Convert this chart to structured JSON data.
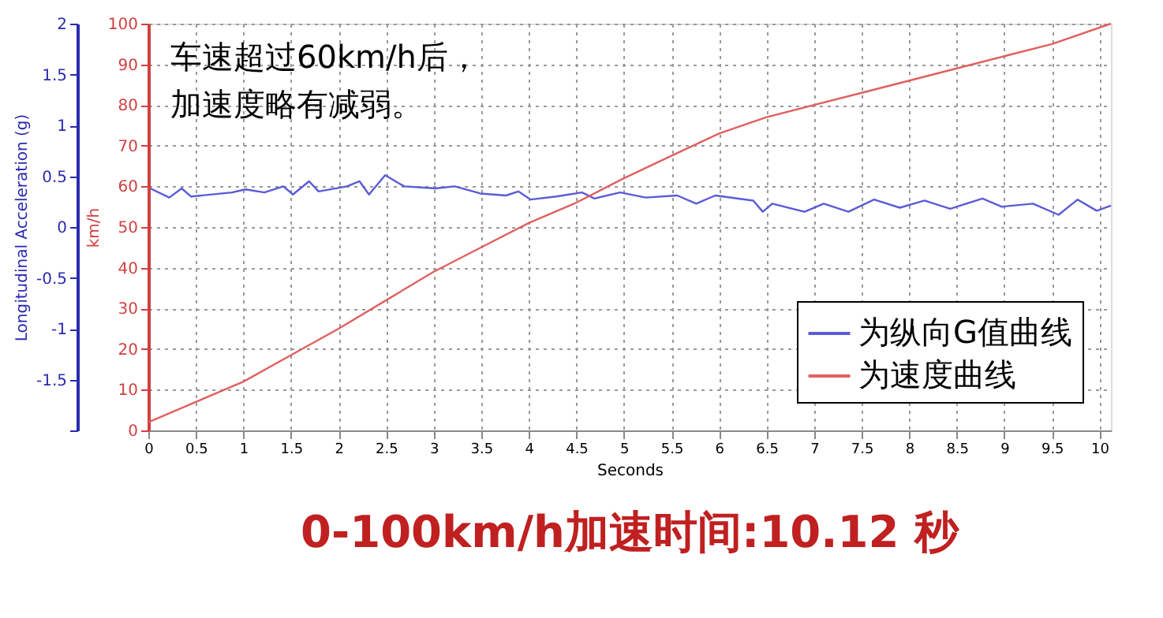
{
  "chart_data": {
    "type": "line",
    "title": "0-100km/h加速时间:10.12 秒",
    "xlabel": "Seconds",
    "ylabel": "km/h",
    "y2label": "Longitudinal Acceleration (g)",
    "annotations": [
      "车速超过60km/h后，",
      "加速度略有减弱。"
    ],
    "xlim": [
      0,
      10.12
    ],
    "xticks": [
      0,
      0.5,
      1,
      1.5,
      2,
      2.5,
      3,
      3.5,
      4,
      4.5,
      5,
      5.5,
      6,
      6.5,
      7,
      7.5,
      8,
      8.5,
      9,
      9.5,
      10
    ],
    "ylim": [
      0,
      100
    ],
    "yticks": [
      0,
      10,
      20,
      30,
      40,
      50,
      60,
      70,
      80,
      90,
      100
    ],
    "y2lim": [
      -2,
      2
    ],
    "y2ticks": [
      {
        "value": -2,
        "label": null
      },
      -1.5,
      -1,
      -0.5,
      0,
      0.5,
      1,
      1.5,
      2
    ],
    "grid": true,
    "legend": "bottom right",
    "series": [
      {
        "name": "为纵向G值曲线",
        "color": "#5b5bd6",
        "axis": "y2",
        "x": [
          0.02,
          0.22,
          0.35,
          0.45,
          0.88,
          1.02,
          1.22,
          1.42,
          1.52,
          1.69,
          1.79,
          2.09,
          2.22,
          2.32,
          2.49,
          2.69,
          3.02,
          3.22,
          3.49,
          3.76,
          3.89,
          4.02,
          4.29,
          4.56,
          4.69,
          4.96,
          5.23,
          5.56,
          5.76,
          5.96,
          6.36,
          6.46,
          6.56,
          6.9,
          7.1,
          7.36,
          7.63,
          7.9,
          8.16,
          8.43,
          8.77,
          8.97,
          9.3,
          9.57,
          9.77,
          9.97,
          10.12
        ],
        "values": [
          0.38,
          0.29,
          0.38,
          0.3,
          0.34,
          0.37,
          0.34,
          0.4,
          0.32,
          0.45,
          0.35,
          0.4,
          0.45,
          0.32,
          0.51,
          0.4,
          0.38,
          0.4,
          0.33,
          0.31,
          0.35,
          0.27,
          0.3,
          0.34,
          0.28,
          0.34,
          0.29,
          0.31,
          0.23,
          0.31,
          0.26,
          0.15,
          0.23,
          0.15,
          0.23,
          0.15,
          0.27,
          0.19,
          0.26,
          0.18,
          0.28,
          0.2,
          0.23,
          0.12,
          0.27,
          0.16,
          0.21
        ]
      },
      {
        "name": "为速度曲线",
        "color": "#e06060",
        "axis": "y",
        "x": [
          0,
          0.5,
          1,
          1.5,
          2,
          2.5,
          3,
          3.5,
          4,
          4.5,
          5,
          5.5,
          6,
          6.5,
          7,
          7.5,
          8,
          8.5,
          9,
          9.5,
          10.12
        ],
        "values": [
          2,
          7,
          12,
          18.5,
          25,
          32,
          39,
          45,
          51,
          56,
          62,
          67.5,
          73,
          77,
          80,
          83,
          86,
          89,
          92,
          95,
          100
        ]
      }
    ]
  }
}
